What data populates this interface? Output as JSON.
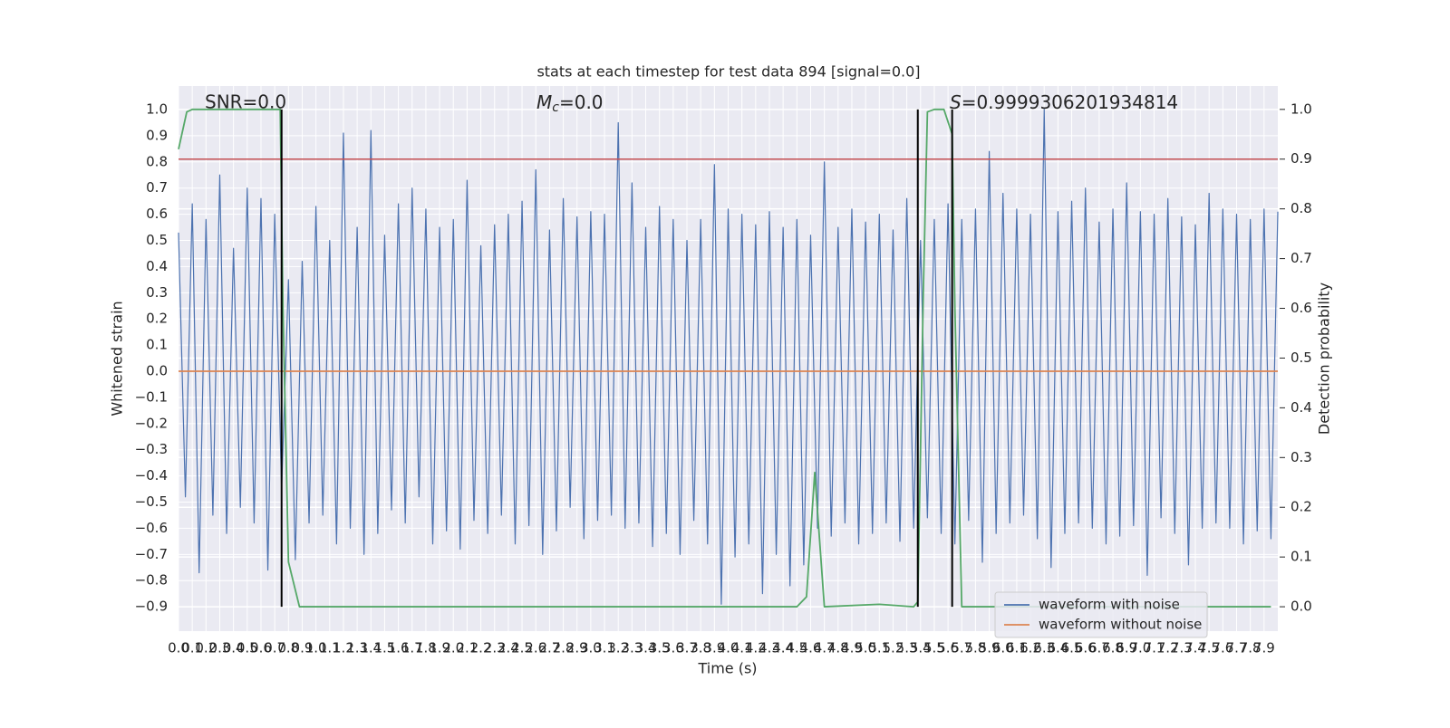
{
  "chart_data": {
    "type": "line",
    "title": "stats at each timestep for test data 894 [signal=0.0]",
    "xlabel": "Time (s)",
    "ylabel": "Whitened strain",
    "y2label": "Detection probability",
    "annotations": [
      "SNR=0.0",
      "Mc=0.0",
      "S=0.9999306201934814"
    ],
    "xlim": [
      0,
      8.0
    ],
    "ylim": [
      -0.993,
      1.09
    ],
    "y2lim": [
      -0.049,
      1.047
    ],
    "xticks": [
      {
        "value": 0,
        "label": "0.0"
      },
      0.1,
      0.2,
      0.3,
      0.4,
      0.5,
      0.6,
      0.7,
      0.8,
      0.9,
      {
        "value": 1,
        "label": "1.0"
      },
      1.1,
      1.2,
      1.3,
      1.4,
      1.5,
      1.6,
      1.7,
      1.8,
      1.9,
      {
        "value": 2,
        "label": "2.0"
      },
      2.1,
      2.2,
      2.3,
      2.4,
      2.5,
      2.6,
      2.7,
      2.8,
      2.9,
      {
        "value": 3,
        "label": "3.0"
      },
      3.1,
      3.2,
      3.3,
      3.4,
      3.5,
      3.6,
      3.7,
      3.8,
      3.9,
      {
        "value": 4,
        "label": "4.0"
      },
      4.1,
      4.2,
      4.3,
      4.4,
      4.5,
      4.6,
      4.7,
      4.8,
      4.9,
      {
        "value": 5,
        "label": "5.0"
      },
      5.1,
      5.2,
      5.3,
      5.4,
      5.5,
      5.6,
      5.7,
      5.8,
      5.9,
      {
        "value": 6,
        "label": "6.0"
      },
      6.1,
      6.2,
      6.3,
      6.4,
      6.5,
      6.6,
      6.7,
      6.8,
      6.9,
      {
        "value": 7,
        "label": "7.0"
      },
      7.1,
      7.2,
      7.3,
      7.4,
      7.5,
      7.6,
      7.7,
      7.8,
      7.9
    ],
    "yticks": [
      {
        "value": 1,
        "label": "1.0"
      },
      0.9,
      0.8,
      0.7,
      0.6,
      0.5,
      0.4,
      0.3,
      0.2,
      0.1,
      {
        "value": 0,
        "label": "0.0"
      },
      {
        "value": -0.1,
        "label": "−0.1"
      },
      {
        "value": -0.2,
        "label": "−0.2"
      },
      {
        "value": -0.3,
        "label": "−0.3"
      },
      {
        "value": -0.4,
        "label": "−0.4"
      },
      {
        "value": -0.5,
        "label": "−0.5"
      },
      {
        "value": -0.6,
        "label": "−0.6"
      },
      {
        "value": -0.7,
        "label": "−0.7"
      },
      {
        "value": -0.8,
        "label": "−0.8"
      },
      {
        "value": -0.9,
        "label": "−0.9"
      }
    ],
    "y2ticks": [
      {
        "value": 0,
        "label": "0.0"
      },
      0.1,
      0.2,
      0.3,
      0.4,
      0.5,
      0.6,
      0.7,
      0.8,
      0.9,
      {
        "value": 1,
        "label": "1.0"
      }
    ],
    "grid": true,
    "legend": "lower right",
    "series": [
      {
        "name": "waveform with noise",
        "color": "#4c72b0",
        "x": [
          0,
          0.05,
          0.1,
          0.15,
          0.2,
          0.25,
          0.3,
          0.35,
          0.4,
          0.45,
          0.5,
          0.55,
          0.6,
          0.65,
          0.7,
          0.75,
          0.8,
          0.85,
          0.9,
          0.95,
          1.0,
          1.05,
          1.1,
          1.15,
          1.2,
          1.25,
          1.3,
          1.35,
          1.4,
          1.45,
          1.5,
          1.55,
          1.6,
          1.65,
          1.7,
          1.75,
          1.8,
          1.85,
          1.9,
          1.95,
          2.0,
          2.05,
          2.1,
          2.15,
          2.2,
          2.25,
          2.3,
          2.35,
          2.4,
          2.45,
          2.5,
          2.55,
          2.6,
          2.65,
          2.7,
          2.75,
          2.8,
          2.85,
          2.9,
          2.95,
          3.0,
          3.05,
          3.1,
          3.15,
          3.2,
          3.25,
          3.3,
          3.35,
          3.4,
          3.45,
          3.5,
          3.55,
          3.6,
          3.65,
          3.7,
          3.75,
          3.8,
          3.85,
          3.9,
          3.95,
          4.0,
          4.05,
          4.1,
          4.15,
          4.2,
          4.25,
          4.3,
          4.35,
          4.4,
          4.45,
          4.5,
          4.55,
          4.6,
          4.65,
          4.7,
          4.75,
          4.8,
          4.85,
          4.9,
          4.95,
          5.0,
          5.05,
          5.1,
          5.15,
          5.2,
          5.25,
          5.3,
          5.35,
          5.4,
          5.45,
          5.5,
          5.55,
          5.6,
          5.65,
          5.7,
          5.75,
          5.8,
          5.85,
          5.9,
          5.95,
          6.0,
          6.05,
          6.1,
          6.15,
          6.2,
          6.25,
          6.3,
          6.35,
          6.4,
          6.45,
          6.5,
          6.55,
          6.6,
          6.65,
          6.7,
          6.75,
          6.8,
          6.85,
          6.9,
          6.95,
          7.0,
          7.05,
          7.1,
          7.15,
          7.2,
          7.25,
          7.3,
          7.35,
          7.4,
          7.45,
          7.5,
          7.55,
          7.6,
          7.65,
          7.7,
          7.75,
          7.8,
          7.85,
          7.9,
          7.95,
          8.0
        ],
        "values": [
          0.53,
          -0.48,
          0.64,
          -0.77,
          0.58,
          -0.55,
          0.75,
          -0.62,
          0.47,
          -0.52,
          0.7,
          -0.58,
          0.66,
          -0.76,
          0.6,
          -0.45,
          0.35,
          -0.72,
          0.42,
          -0.58,
          0.63,
          -0.55,
          0.5,
          -0.66,
          0.91,
          -0.6,
          0.55,
          -0.7,
          0.92,
          -0.62,
          0.52,
          -0.53,
          0.64,
          -0.58,
          0.7,
          -0.48,
          0.62,
          -0.66,
          0.55,
          -0.61,
          0.58,
          -0.68,
          0.73,
          -0.57,
          0.48,
          -0.62,
          0.56,
          -0.55,
          0.6,
          -0.66,
          0.65,
          -0.59,
          0.77,
          -0.7,
          0.54,
          -0.61,
          0.66,
          -0.52,
          0.59,
          -0.64,
          0.61,
          -0.57,
          0.6,
          -0.55,
          0.95,
          -0.6,
          0.72,
          -0.58,
          0.55,
          -0.67,
          0.63,
          -0.62,
          0.58,
          -0.7,
          0.5,
          -0.57,
          0.58,
          -0.66,
          0.79,
          -0.89,
          0.62,
          -0.71,
          0.6,
          -0.66,
          0.56,
          -0.85,
          0.61,
          -0.7,
          0.55,
          -0.82,
          0.58,
          -0.74,
          0.52,
          -0.6,
          0.8,
          -0.63,
          0.55,
          -0.58,
          0.62,
          -0.66,
          0.57,
          -0.62,
          0.6,
          -0.58,
          0.54,
          -0.65,
          0.66,
          -0.6,
          0.5,
          -0.56,
          0.58,
          -0.62,
          0.64,
          -0.66,
          0.58,
          -0.57,
          0.62,
          -0.73,
          0.84,
          -0.62,
          0.68,
          -0.58,
          0.62,
          -0.55,
          0.6,
          -0.64,
          1.0,
          -0.75,
          0.61,
          -0.62,
          0.65,
          -0.58,
          0.7,
          -0.6,
          0.57,
          -0.66,
          0.62,
          -0.63,
          0.72,
          -0.59,
          0.61,
          -0.78,
          0.6,
          -0.56,
          0.66,
          -0.62,
          0.59,
          -0.74,
          0.56,
          -0.6,
          0.68,
          -0.58,
          0.62,
          -0.6,
          0.6,
          -0.66,
          0.58,
          -0.61,
          0.62,
          -0.64,
          0.61
        ]
      },
      {
        "name": "waveform without noise",
        "color": "#dd8452",
        "x": [
          0,
          8.0
        ],
        "values": [
          0,
          0
        ]
      },
      {
        "color": "#55a868",
        "axis": "y2",
        "x": [
          0,
          0.06,
          0.1,
          0.74,
          0.76,
          0.8,
          0.88,
          4.5,
          4.57,
          4.63,
          4.7,
          5.1,
          5.35,
          5.38,
          5.42,
          5.45,
          5.5,
          5.57,
          5.63,
          5.65,
          5.7,
          7.95
        ],
        "values": [
          0.92,
          0.995,
          1.0,
          1.0,
          0.6,
          0.09,
          0.0,
          0.0,
          0.02,
          0.27,
          0.0,
          0.005,
          0.0,
          0.01,
          0.63,
          0.995,
          1.0,
          1.0,
          0.95,
          0.6,
          0.0,
          0.0
        ]
      }
    ],
    "threshold": {
      "value": 0.9,
      "axis": "y2",
      "color": "#c44e52"
    },
    "vlines": [
      0.75,
      5.38,
      5.63
    ],
    "vline_range": [
      0,
      1
    ],
    "vline_color": "#000000"
  }
}
